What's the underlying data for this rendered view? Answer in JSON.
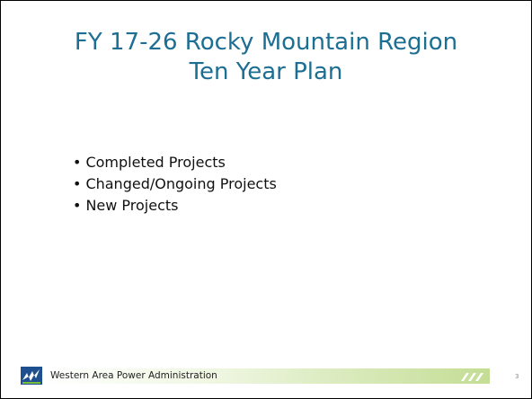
{
  "title": [
    "FY 17-26 Rocky Mountain Region",
    "Ten Year Plan"
  ],
  "bullets": [
    "Completed Projects",
    "Changed/Ongoing Projects",
    "New Projects"
  ],
  "footer": {
    "organization": "Western Area Power Administration",
    "page_number": 3
  }
}
